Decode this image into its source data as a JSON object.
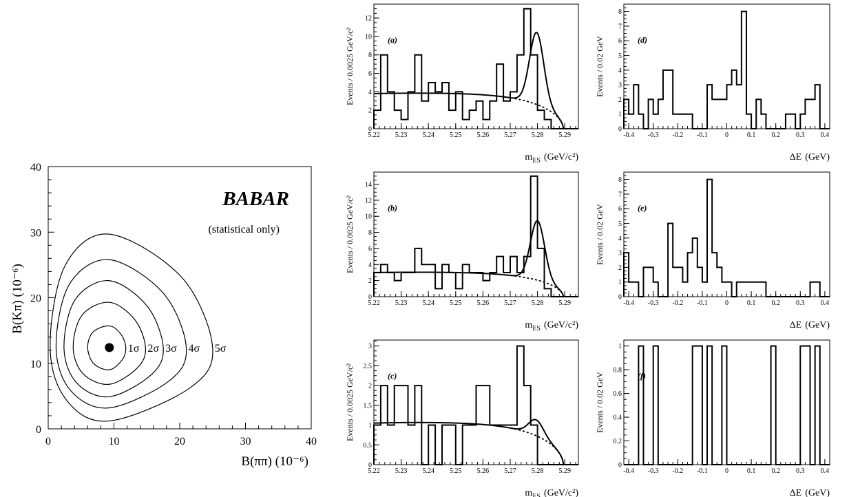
{
  "chart_data": [
    {
      "id": "contour",
      "type": "contour",
      "xlabel": "B(ππ) (10⁻⁶)",
      "ylabel": "B(Kπ) (10⁻⁶)",
      "xlim": [
        0,
        40
      ],
      "ylim": [
        0,
        40
      ],
      "xticks": [
        "0",
        "10",
        "20",
        "30",
        "40"
      ],
      "yticks": [
        "0",
        "10",
        "20",
        "30",
        "40"
      ],
      "experiment_label": "BABAR",
      "note": "(statistical only)",
      "best_fit": {
        "x": 9.3,
        "y": 12.4
      },
      "contours": [
        {
          "label": "1σ",
          "x_left": 6.0,
          "x_right": 11.8,
          "y_low": 9.0,
          "y_high": 15.7
        },
        {
          "label": "2σ",
          "x_left": 3.8,
          "x_right": 14.8,
          "y_low": 6.8,
          "y_high": 19.3
        },
        {
          "label": "3σ",
          "x_left": 2.4,
          "x_right": 17.5,
          "y_low": 4.9,
          "y_high": 22.6
        },
        {
          "label": "4σ",
          "x_left": 1.2,
          "x_right": 21.0,
          "y_low": 3.2,
          "y_high": 25.8
        },
        {
          "label": "5σ",
          "x_left": 0.3,
          "x_right": 25.0,
          "y_low": 1.2,
          "y_high": 29.7
        }
      ]
    },
    {
      "id": "a",
      "type": "histogram",
      "tag": "(a)",
      "xlabel_main": "m",
      "xlabel_sub": "ES",
      "xlabel_unit": "(GeV/c²)",
      "ylabel": "Events / 0.0025 GeV/c²",
      "xlim": [
        5.22,
        5.295
      ],
      "ylim": [
        0,
        13.5
      ],
      "xticks": [
        "5.22",
        "5.23",
        "5.24",
        "5.25",
        "5.26",
        "5.27",
        "5.28",
        "5.29"
      ],
      "yticks": [
        "0",
        "2",
        "4",
        "6",
        "8",
        "10",
        "12"
      ],
      "bin_start": 5.22,
      "bin_width": 0.0025,
      "values": [
        2,
        8,
        4,
        2,
        1,
        4,
        8,
        3,
        5,
        4,
        5,
        2,
        4,
        1,
        2,
        3,
        1,
        3,
        7,
        3,
        4,
        8,
        13,
        8,
        2,
        1,
        0,
        0,
        0,
        0
      ],
      "fit": {
        "bkg": 3.8,
        "sig_amp": 7.8,
        "mean": 5.2797,
        "sigma": 0.0026
      },
      "mark": "main"
    },
    {
      "id": "b",
      "type": "histogram",
      "tag": "(b)",
      "xlabel_main": "m",
      "xlabel_sub": "ES",
      "xlabel_unit": "(GeV/c²)",
      "ylabel": "Events / 0.0025 GeV/c²",
      "xlim": [
        5.22,
        5.295
      ],
      "ylim": [
        0,
        15.5
      ],
      "xticks": [
        "5.22",
        "5.23",
        "5.24",
        "5.25",
        "5.26",
        "5.27",
        "5.28",
        "5.29"
      ],
      "yticks": [
        "0",
        "2",
        "4",
        "6",
        "8",
        "10",
        "12",
        "14"
      ],
      "bin_start": 5.22,
      "bin_width": 0.0025,
      "values": [
        3,
        4,
        3,
        2,
        3,
        3,
        6,
        4,
        4,
        1,
        4,
        3,
        1,
        4,
        3,
        3,
        2,
        3,
        5,
        3,
        5,
        3,
        5,
        15,
        6,
        1,
        0,
        0,
        0,
        0
      ],
      "fit": {
        "bkg": 3.0,
        "sig_amp": 7.4,
        "mean": 5.28,
        "sigma": 0.0026
      },
      "mark": "main"
    },
    {
      "id": "c",
      "type": "histogram",
      "tag": "(c)",
      "xlabel_main": "m",
      "xlabel_sub": "ES",
      "xlabel_unit": "(GeV/c²)",
      "ylabel": "Events / 0.0025 GeV/c²",
      "xlim": [
        5.22,
        5.295
      ],
      "ylim": [
        0,
        3.15
      ],
      "xticks": [
        "5.22",
        "5.23",
        "5.24",
        "5.25",
        "5.26",
        "5.27",
        "5.28",
        "5.29"
      ],
      "yticks": [
        "0",
        "0.5",
        "1",
        "1.5",
        "2",
        "2.5",
        "3"
      ],
      "bin_start": 5.22,
      "bin_width": 0.0025,
      "values": [
        1,
        2,
        1,
        2,
        2,
        1,
        2,
        0,
        1,
        0,
        1,
        1,
        0,
        1,
        1,
        2,
        2,
        1,
        1,
        1,
        1,
        3,
        2,
        1,
        0,
        0,
        0,
        0,
        0,
        0
      ],
      "fit": {
        "bkg": 1.05,
        "sig_amp": 0.4,
        "mean": 5.2795,
        "sigma": 0.0027
      },
      "mark": "main"
    },
    {
      "id": "d",
      "type": "histogram",
      "tag": "(d)",
      "xlabel_main": "ΔE",
      "xlabel_sub": "",
      "xlabel_unit": "(GeV)",
      "ylabel": "Events / 0.02 GeV",
      "xlim": [
        -0.42,
        0.42
      ],
      "ylim": [
        0,
        8.5
      ],
      "xticks": [
        "-0.4",
        "-0.3",
        "-0.2",
        "-0.1",
        "0",
        "0.1",
        "0.2",
        "0.3",
        "0.4"
      ],
      "yticks": [
        "0",
        "1",
        "2",
        "3",
        "4",
        "5",
        "6",
        "7",
        "8"
      ],
      "bin_start": -0.42,
      "bin_width": 0.02,
      "values": [
        2,
        1,
        3,
        1,
        0,
        2,
        1,
        2,
        4,
        4,
        1,
        1,
        1,
        1,
        0,
        0,
        0,
        3,
        2,
        2,
        2,
        3,
        4,
        3,
        8,
        1,
        0,
        2,
        1,
        0,
        0,
        0,
        0,
        1,
        1,
        0,
        1,
        2,
        2,
        3,
        0,
        0
      ],
      "mark": "de"
    },
    {
      "id": "e",
      "type": "histogram",
      "tag": "(e)",
      "xlabel_main": "ΔE",
      "xlabel_sub": "",
      "xlabel_unit": "(GeV)",
      "ylabel": "Events / 0.02 GeV",
      "xlim": [
        -0.42,
        0.42
      ],
      "ylim": [
        0,
        8.5
      ],
      "xticks": [
        "-0.4",
        "-0.3",
        "-0.2",
        "-0.1",
        "0",
        "0.1",
        "0.2",
        "0.3",
        "0.4"
      ],
      "yticks": [
        "0",
        "1",
        "2",
        "3",
        "4",
        "5",
        "6",
        "7",
        "8"
      ],
      "bin_start": -0.42,
      "bin_width": 0.02,
      "values": [
        3,
        1,
        1,
        0,
        2,
        2,
        1,
        0,
        0,
        5,
        2,
        2,
        1,
        3,
        4,
        2,
        1,
        8,
        3,
        2,
        1,
        1,
        0,
        1,
        1,
        1,
        1,
        1,
        1,
        0,
        0,
        0,
        0,
        0,
        0,
        0,
        0,
        0,
        1,
        1,
        0,
        0
      ],
      "mark": "de"
    },
    {
      "id": "f",
      "type": "histogram",
      "tag": "(f)",
      "xlabel_main": "ΔE",
      "xlabel_sub": "",
      "xlabel_unit": "(GeV)",
      "ylabel": "Events / 0.02 GeV",
      "xlim": [
        -0.42,
        0.42
      ],
      "ylim": [
        0,
        1.05
      ],
      "xticks": [
        "-0.4",
        "-0.3",
        "-0.2",
        "-0.1",
        "0",
        "0.1",
        "0.2",
        "0.3",
        "0.4"
      ],
      "yticks": [
        "0",
        "0.2",
        "0.4",
        "0.6",
        "0.8",
        "1"
      ],
      "bin_start": -0.42,
      "bin_width": 0.02,
      "values": [
        0,
        0,
        0,
        1,
        0,
        0,
        1,
        0,
        0,
        0,
        0,
        0,
        0,
        0,
        1,
        1,
        0,
        1,
        0,
        0,
        1,
        0,
        0,
        0,
        0,
        0,
        0,
        0,
        0,
        0,
        1,
        0,
        0,
        0,
        0,
        0,
        1,
        1,
        0,
        1,
        0,
        0
      ],
      "mark": "de"
    }
  ]
}
